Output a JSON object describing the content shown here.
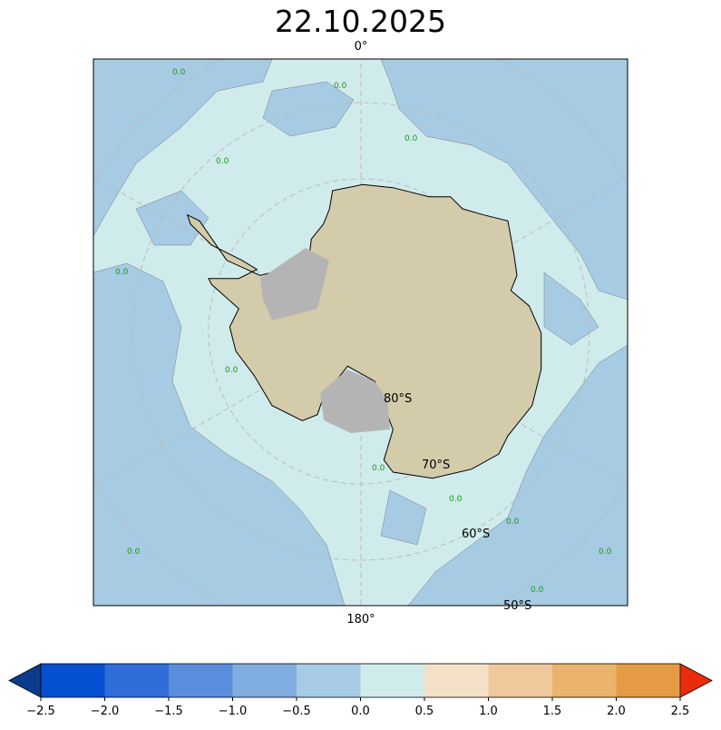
{
  "title": "22.10.2025",
  "map": {
    "projection": "south-polar-stereographic",
    "meridian_labels": {
      "top": "0°",
      "bottom": "180°"
    },
    "parallel_labels": [
      "80°S",
      "70°S",
      "60°S",
      "50°S"
    ],
    "contour_label": "0.0",
    "colors": {
      "ocean_neutral": "#d0ebeb",
      "ocean_negative": "#a6cbe3",
      "land": "#d4cbab",
      "ice_shelf": "#b4b4b4",
      "contour": "#1a9a1a"
    }
  },
  "colorbar": {
    "ticks": [
      "−2.5",
      "−2.0",
      "−1.5",
      "−1.0",
      "−0.5",
      "0.0",
      "0.5",
      "1.0",
      "1.5",
      "2.0",
      "2.5"
    ],
    "under_color": "#0b3b8c",
    "over_color": "#ec2a0c",
    "colors": [
      "#0550d0",
      "#2f6ed8",
      "#5a8ddb",
      "#80aee0",
      "#a7cbe4",
      "#d0ebeb",
      "#f5e1c8",
      "#f0c89c",
      "#eab36e",
      "#e59b44"
    ]
  }
}
